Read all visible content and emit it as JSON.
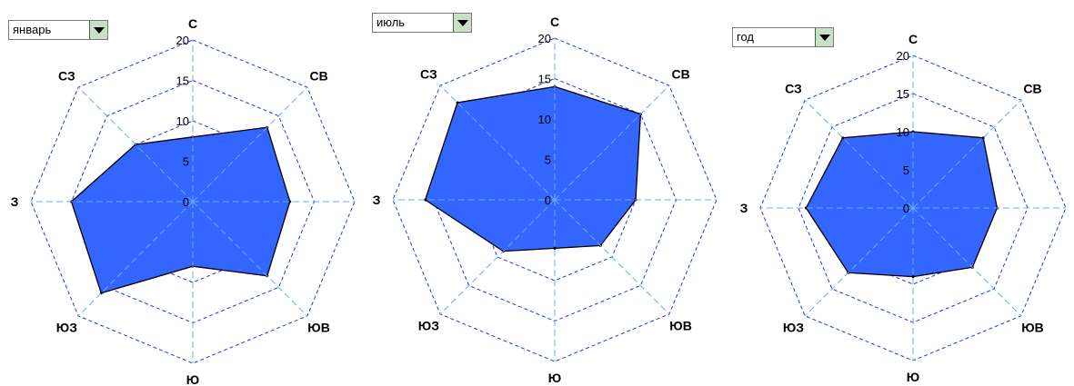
{
  "chart_data": [
    {
      "type": "radar",
      "selector": "январь",
      "directions": [
        "С",
        "СВ",
        "В",
        "ЮВ",
        "Ю",
        "ЮЗ",
        "З",
        "СЗ"
      ],
      "values": [
        8,
        13,
        12,
        13,
        8,
        16,
        15,
        10
      ],
      "rmax": 20,
      "ticks": [
        "0",
        "5",
        "10",
        "15",
        "20"
      ]
    },
    {
      "type": "radar",
      "selector": "июль",
      "directions": [
        "С",
        "СВ",
        "В",
        "ЮВ",
        "Ю",
        "ЮЗ",
        "З",
        "СЗ"
      ],
      "values": [
        14,
        15,
        10,
        8,
        6,
        9,
        16,
        17
      ],
      "rmax": 20,
      "ticks": [
        "0",
        "5",
        "10",
        "15",
        "20"
      ]
    },
    {
      "type": "radar",
      "selector": "год",
      "directions": [
        "С",
        "СВ",
        "В",
        "ЮВ",
        "Ю",
        "ЮЗ",
        "З",
        "СЗ"
      ],
      "values": [
        10,
        13,
        11,
        11,
        9,
        12,
        14,
        13
      ],
      "rmax": 20,
      "ticks": [
        "0",
        "5",
        "10",
        "15",
        "20"
      ]
    }
  ],
  "colors": {
    "fill": "#3366ff",
    "outline": "#000000",
    "grid": "#2233ee",
    "spokes": "#66aaff"
  }
}
